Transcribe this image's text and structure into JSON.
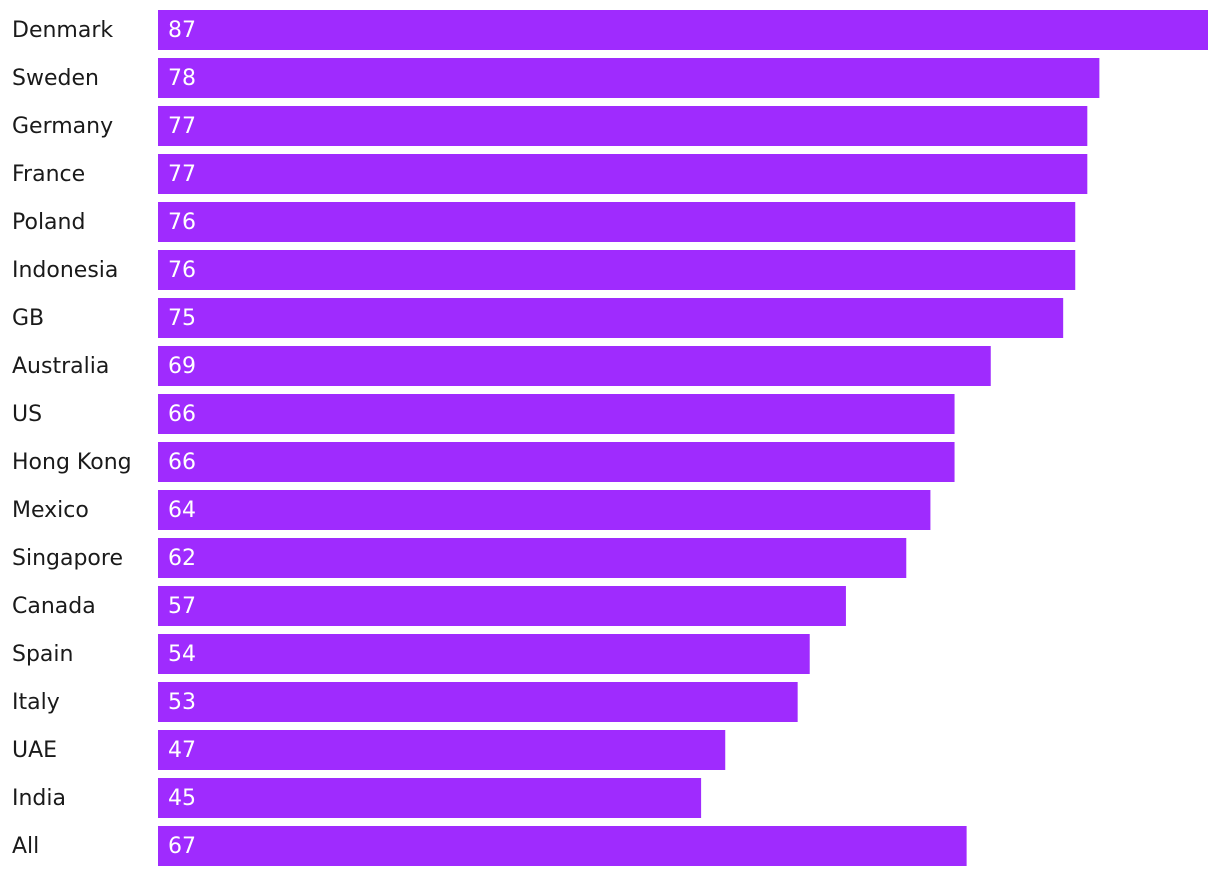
{
  "chart_data": {
    "type": "bar",
    "orientation": "horizontal",
    "categories": [
      "Denmark",
      "Sweden",
      "Germany",
      "France",
      "Poland",
      "Indonesia",
      "GB",
      "Australia",
      "US",
      "Hong Kong",
      "Mexico",
      "Singapore",
      "Canada",
      "Spain",
      "Italy",
      "UAE",
      "India",
      "All"
    ],
    "values": [
      87,
      78,
      77,
      77,
      76,
      76,
      75,
      69,
      66,
      66,
      64,
      62,
      57,
      54,
      53,
      47,
      45,
      67
    ],
    "color": "#9f2bfe"
  }
}
